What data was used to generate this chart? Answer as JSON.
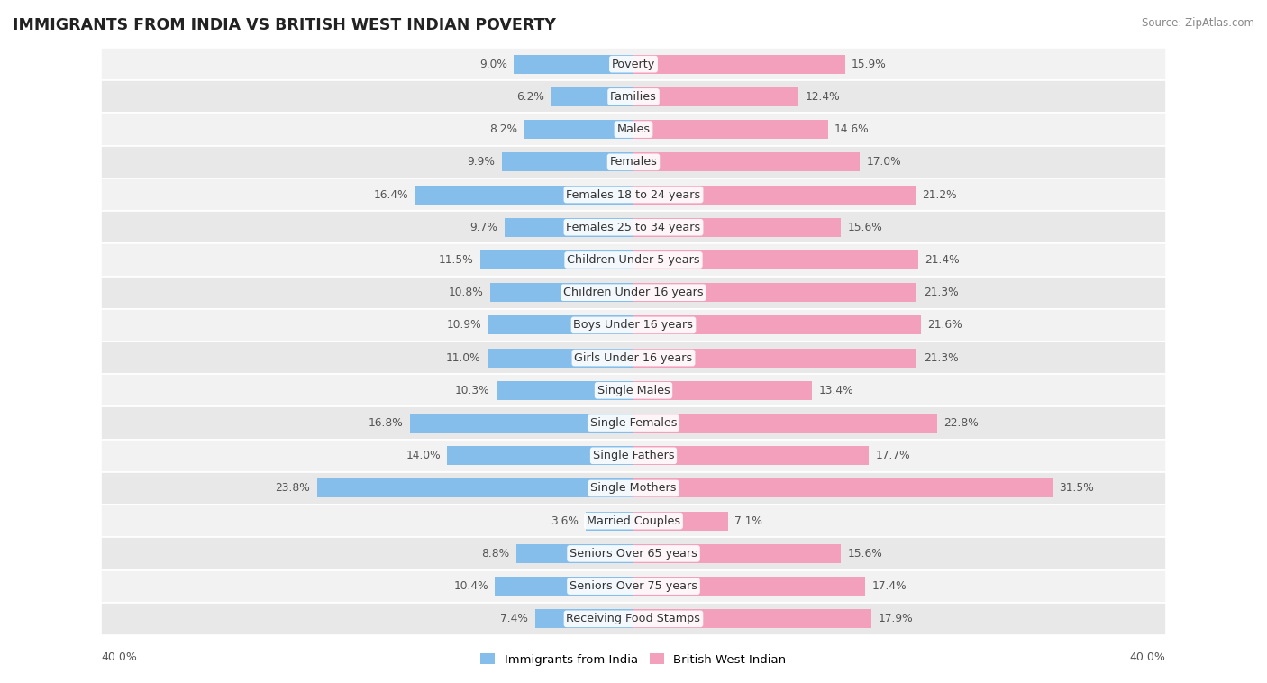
{
  "title": "IMMIGRANTS FROM INDIA VS BRITISH WEST INDIAN POVERTY",
  "source": "Source: ZipAtlas.com",
  "categories": [
    "Poverty",
    "Families",
    "Males",
    "Females",
    "Females 18 to 24 years",
    "Females 25 to 34 years",
    "Children Under 5 years",
    "Children Under 16 years",
    "Boys Under 16 years",
    "Girls Under 16 years",
    "Single Males",
    "Single Females",
    "Single Fathers",
    "Single Mothers",
    "Married Couples",
    "Seniors Over 65 years",
    "Seniors Over 75 years",
    "Receiving Food Stamps"
  ],
  "india_values": [
    9.0,
    6.2,
    8.2,
    9.9,
    16.4,
    9.7,
    11.5,
    10.8,
    10.9,
    11.0,
    10.3,
    16.8,
    14.0,
    23.8,
    3.6,
    8.8,
    10.4,
    7.4
  ],
  "bwi_values": [
    15.9,
    12.4,
    14.6,
    17.0,
    21.2,
    15.6,
    21.4,
    21.3,
    21.6,
    21.3,
    13.4,
    22.8,
    17.7,
    31.5,
    7.1,
    15.6,
    17.4,
    17.9
  ],
  "india_color": "#85BEEA",
  "bwi_color": "#F2A0BC",
  "bar_height": 0.58,
  "xlim_max": 40,
  "row_bg_even": "#f2f2f2",
  "row_bg_odd": "#e8e8e8",
  "label_fontsize": 9.2,
  "value_fontsize": 8.8,
  "title_fontsize": 12.5,
  "source_fontsize": 8.5,
  "axis_label_fontsize": 9,
  "legend_label_india": "Immigrants from India",
  "legend_label_bwi": "British West Indian",
  "footer_value": "40.0%"
}
